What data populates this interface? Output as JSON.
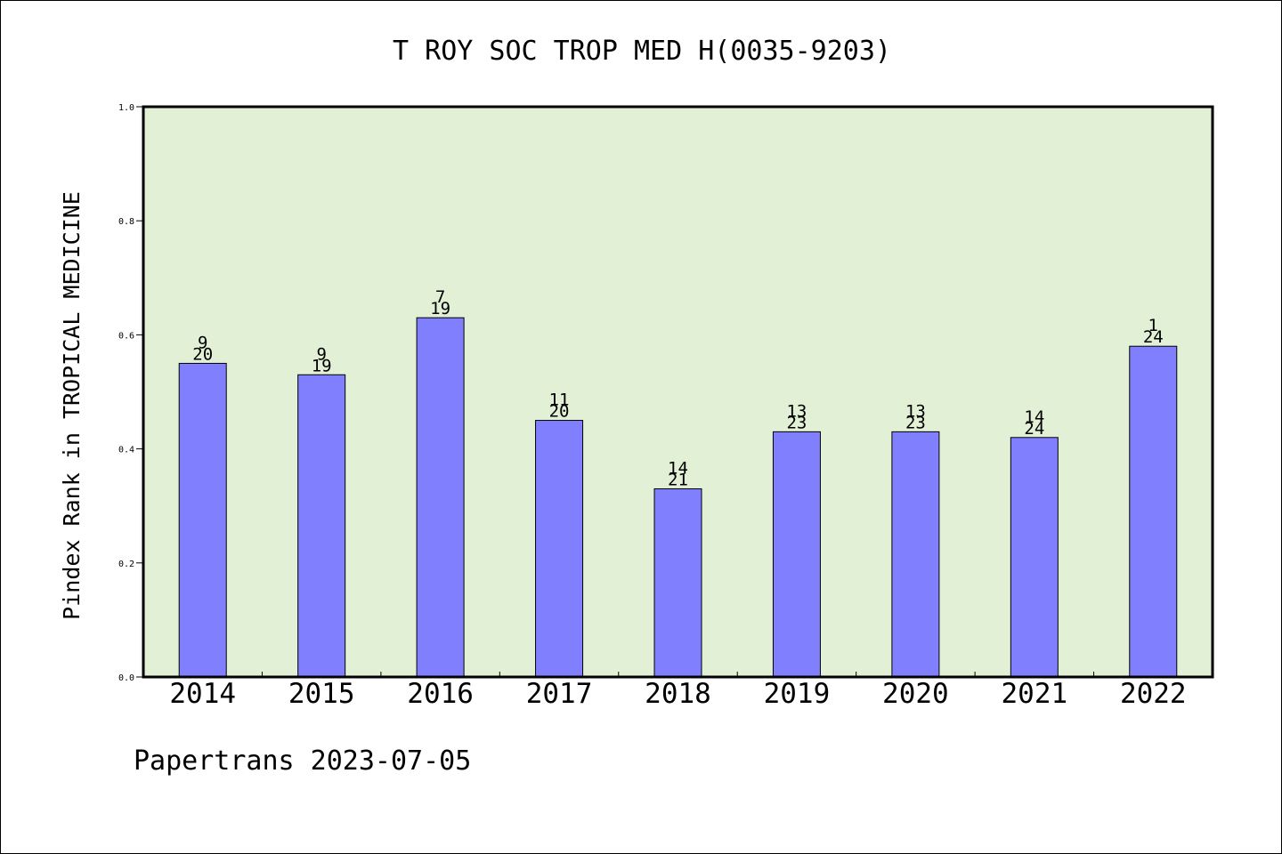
{
  "chart_data": {
    "type": "bar",
    "title": "T ROY SOC TROP MED H(0035-9203)",
    "xlabel": "",
    "ylabel": "Pindex Rank in TROPICAL MEDICINE",
    "ylim": [
      0,
      1.0
    ],
    "yticks": [
      "0.0",
      "0.2",
      "0.4",
      "0.6",
      "0.8",
      "1.0"
    ],
    "categories": [
      "2014",
      "2015",
      "2016",
      "2017",
      "2018",
      "2019",
      "2020",
      "2021",
      "2022"
    ],
    "values": [
      0.55,
      0.53,
      0.63,
      0.45,
      0.33,
      0.43,
      0.43,
      0.42,
      0.58
    ],
    "rank": [
      "9",
      "9",
      "7",
      "11",
      "14",
      "13",
      "13",
      "14",
      "1"
    ],
    "total": [
      "20",
      "19",
      "19",
      "20",
      "21",
      "23",
      "23",
      "24",
      "24"
    ],
    "grid": false,
    "legend": "none"
  },
  "footer": "Papertrans 2023-07-05",
  "colors": {
    "plot_background": "#e2f0d6",
    "bar_fill": "#8080ff",
    "bar_stroke": "#000000",
    "axis": "#000000"
  }
}
